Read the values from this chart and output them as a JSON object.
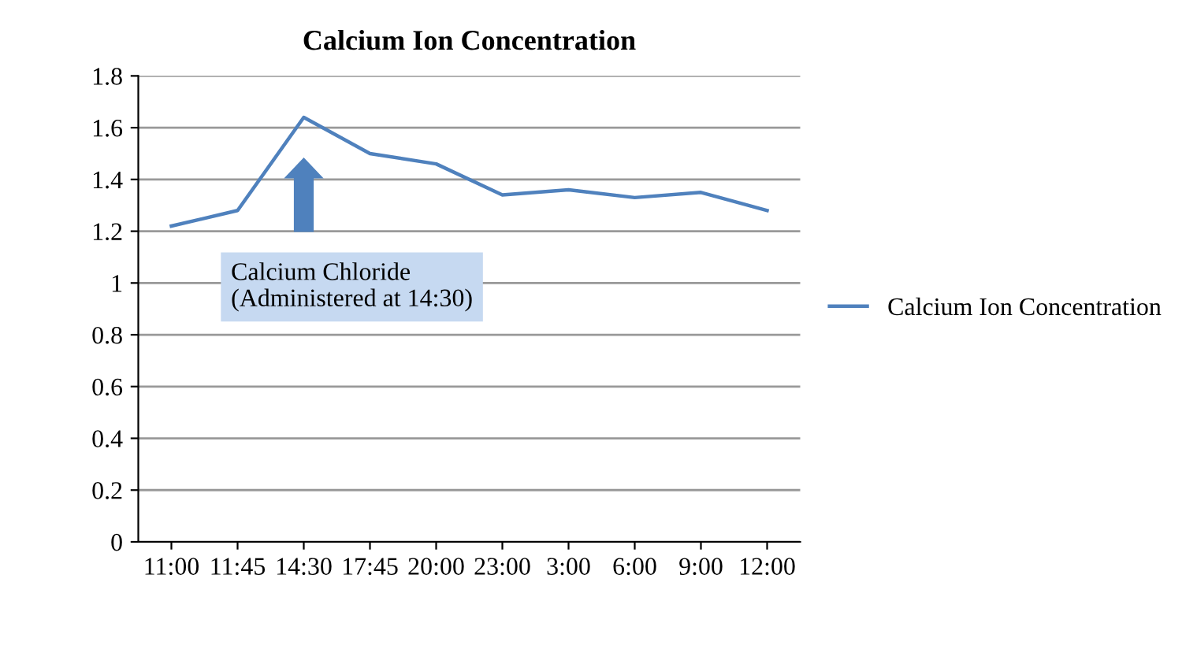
{
  "chart_data": {
    "type": "line",
    "title": "Calcium Ion Concentration",
    "categories": [
      "11:00",
      "11:45",
      "14:30",
      "17:45",
      "20:00",
      "23:00",
      "3:00",
      "6:00",
      "9:00",
      "12:00"
    ],
    "series": [
      {
        "name": "Calcium Ion Concentration",
        "color": "#4f81bd",
        "values": [
          1.22,
          1.28,
          1.64,
          1.5,
          1.46,
          1.34,
          1.36,
          1.33,
          1.35,
          1.28
        ]
      }
    ],
    "ylim": [
      0,
      1.8
    ],
    "yticks": [
      0,
      0.2,
      0.4,
      0.6,
      0.8,
      1,
      1.2,
      1.4,
      1.6,
      1.8
    ],
    "grid": "y",
    "legend": "right",
    "marker": "none",
    "annotations": [
      "Calcium Chloride\n(Administered at 14:30)"
    ]
  }
}
